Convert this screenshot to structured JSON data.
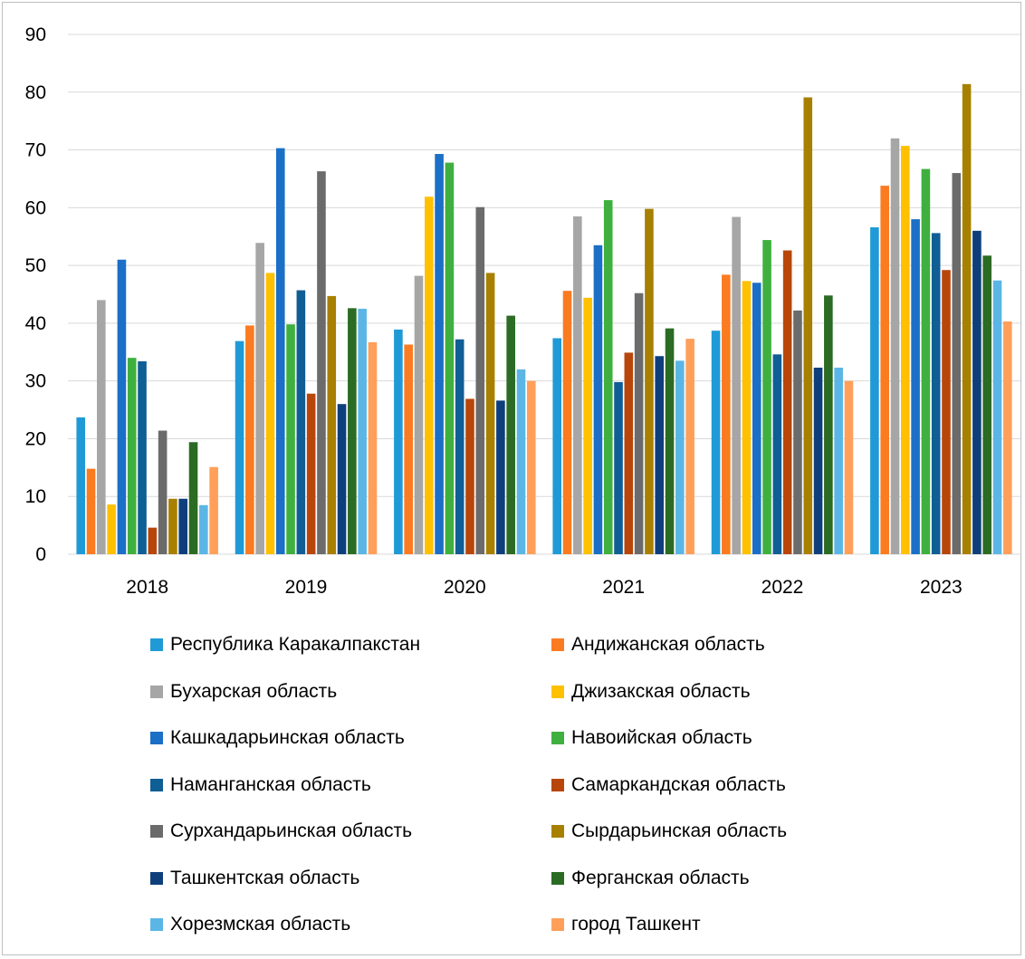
{
  "chart_data": {
    "type": "bar",
    "title": "",
    "xlabel": "",
    "ylabel": "",
    "ylim": [
      0,
      90
    ],
    "yticks": [
      "0",
      "10",
      "20",
      "30",
      "40",
      "50",
      "60",
      "70",
      "80",
      "90"
    ],
    "categories": [
      "2018",
      "2019",
      "2020",
      "2021",
      "2022",
      "2023"
    ],
    "grid": true,
    "legend_position": "bottom",
    "series": [
      {
        "name": "Республика Каракалпакстан",
        "color": "#1f9ad6",
        "values": [
          23.7,
          36.9,
          38.9,
          37.4,
          38.7,
          56.6
        ]
      },
      {
        "name": "Андижанская область",
        "color": "#fb7b21",
        "values": [
          14.8,
          39.6,
          36.3,
          45.6,
          48.4,
          63.8
        ]
      },
      {
        "name": "Бухарская область",
        "color": "#a6a6a6",
        "values": [
          44.0,
          53.9,
          48.2,
          58.5,
          58.4,
          72.0
        ]
      },
      {
        "name": "Джизакская область",
        "color": "#ffc000",
        "values": [
          8.6,
          48.7,
          61.9,
          44.4,
          47.3,
          70.7
        ]
      },
      {
        "name": "Кашкадарьинская область",
        "color": "#1b6fc6",
        "values": [
          51.0,
          70.3,
          69.3,
          53.5,
          47.0,
          58.0
        ]
      },
      {
        "name": "Навоийская область",
        "color": "#3fb03f",
        "values": [
          34.0,
          39.8,
          67.8,
          61.3,
          54.4,
          66.7
        ]
      },
      {
        "name": "Наманганская область",
        "color": "#0f5e95",
        "values": [
          33.4,
          45.7,
          37.2,
          29.8,
          34.6,
          55.6
        ]
      },
      {
        "name": "Самаркандская область",
        "color": "#b8460b",
        "values": [
          4.6,
          27.8,
          26.9,
          34.9,
          52.6,
          49.2
        ]
      },
      {
        "name": "Сурхандарьинская область",
        "color": "#6b6b6b",
        "values": [
          21.4,
          66.3,
          60.1,
          45.2,
          42.2,
          66.0
        ]
      },
      {
        "name": "Сырдарьинская область",
        "color": "#a88000",
        "values": [
          9.6,
          44.7,
          48.7,
          59.8,
          79.1,
          81.4
        ]
      },
      {
        "name": "Ташкентская область",
        "color": "#0e3f7c",
        "values": [
          9.6,
          26.0,
          26.6,
          34.3,
          32.3,
          56.0
        ]
      },
      {
        "name": "Ферганская область",
        "color": "#2b6b24",
        "values": [
          19.4,
          42.6,
          41.3,
          39.1,
          44.8,
          51.7
        ]
      },
      {
        "name": "Хорезмская область",
        "color": "#5bb6e6",
        "values": [
          8.5,
          42.5,
          32.0,
          33.5,
          32.3,
          47.4
        ]
      },
      {
        "name": "город Ташкент",
        "color": "#ff9f5a",
        "values": [
          15.1,
          36.7,
          30.0,
          37.3,
          30.0,
          40.3
        ]
      }
    ]
  }
}
